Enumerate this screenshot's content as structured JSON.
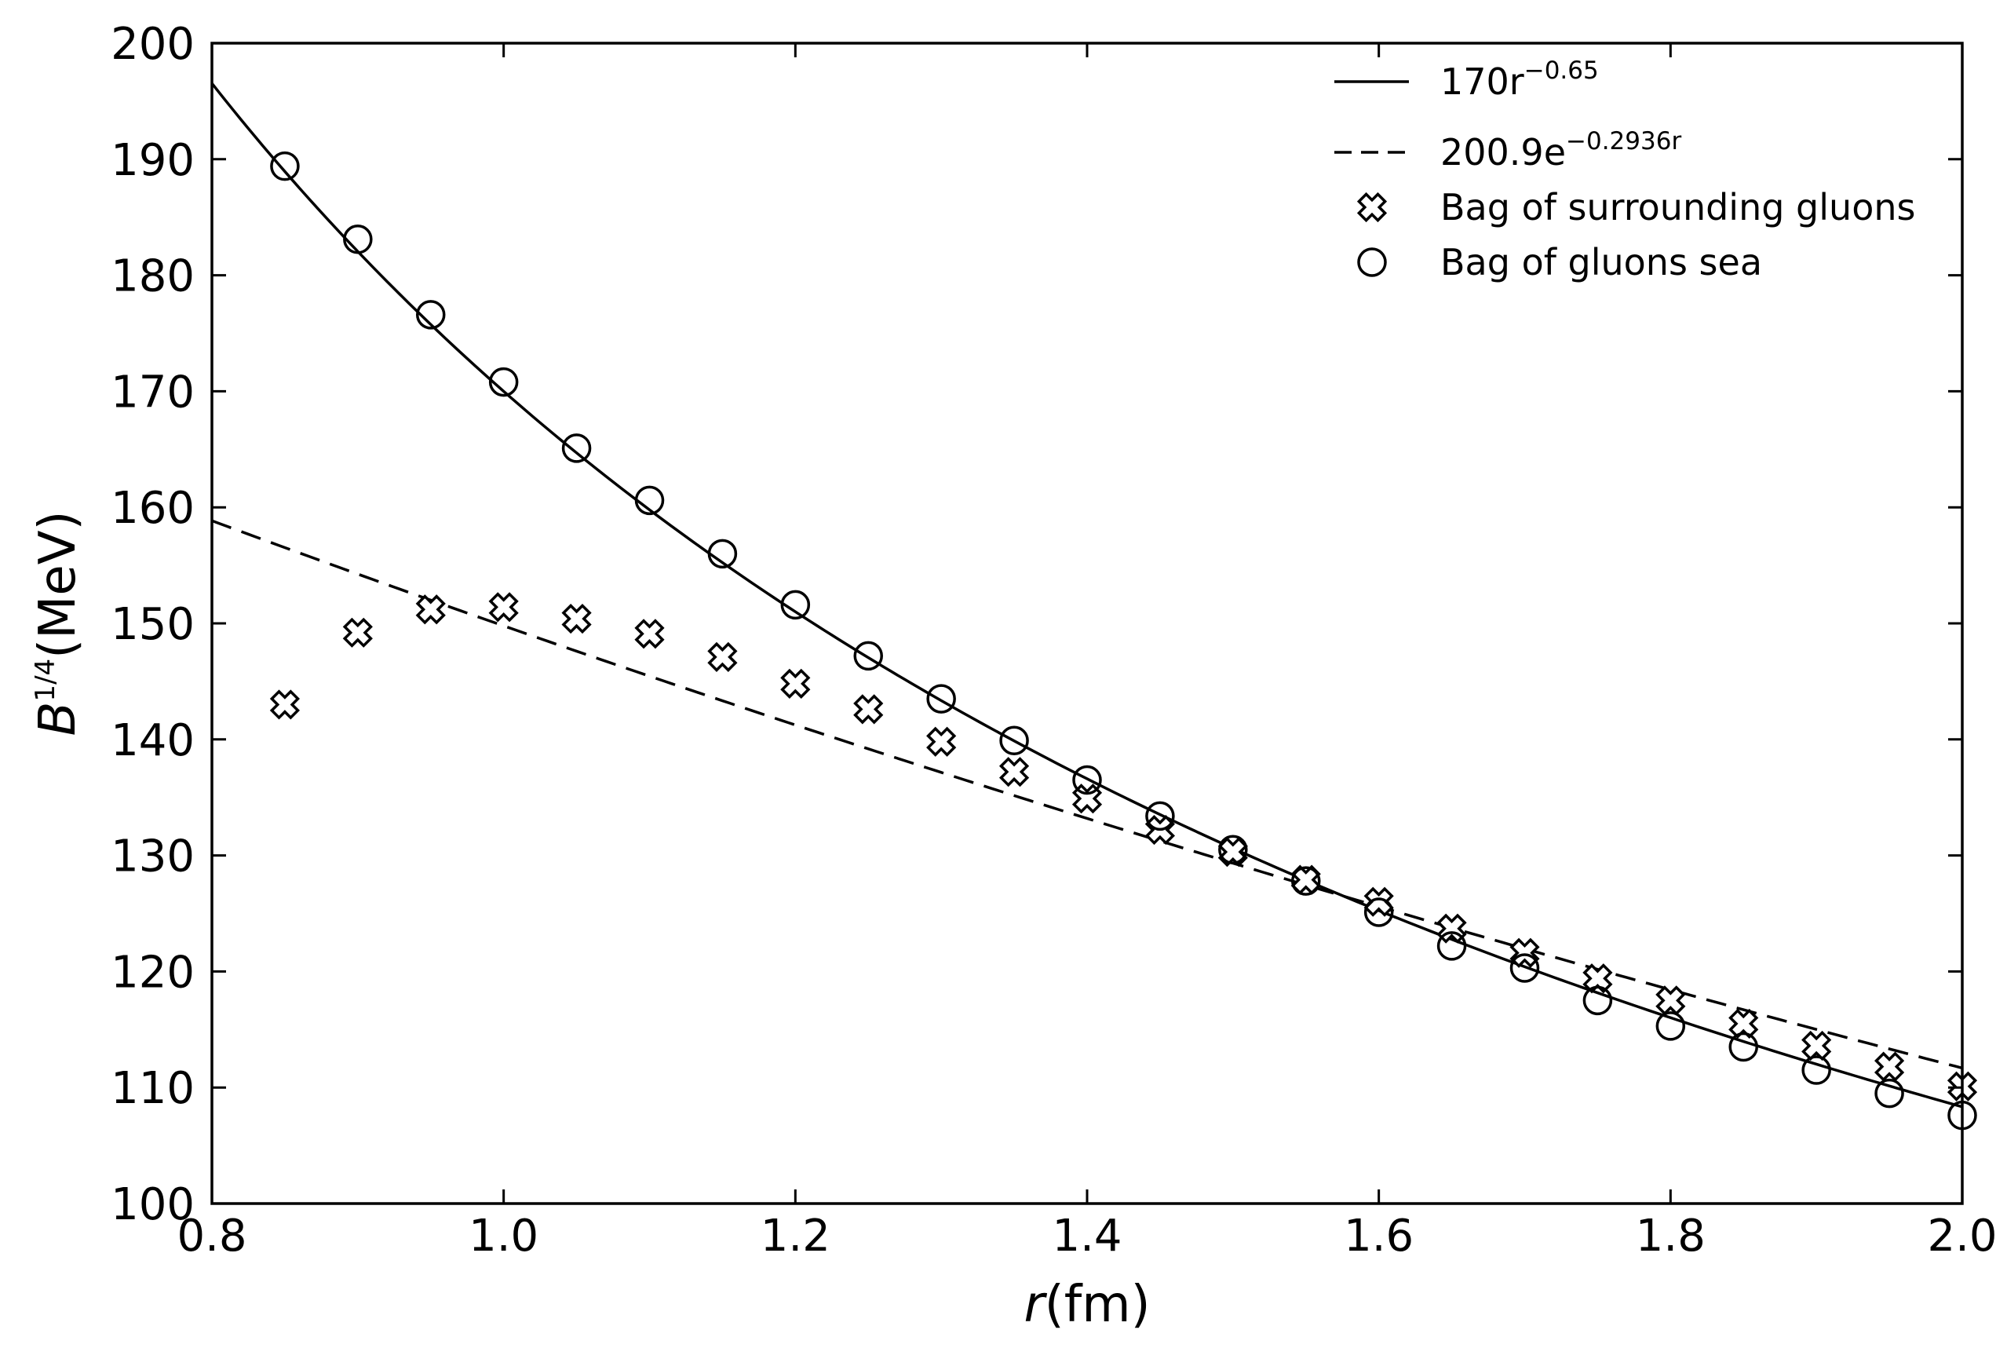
{
  "chart_data": {
    "type": "scatter",
    "xlabel": {
      "main": "r",
      "unit": "(fm)"
    },
    "ylabel": {
      "main": "B",
      "exponent": "1/4",
      "unit": "(MeV)"
    },
    "xlim": [
      0.8,
      2.0
    ],
    "ylim": [
      100,
      200
    ],
    "x_ticks": [
      0.8,
      1.0,
      1.2,
      1.4,
      1.6,
      1.8,
      2.0
    ],
    "x_tick_labels": [
      "0.8",
      "1.0",
      "1.2",
      "1.4",
      "1.6",
      "1.8",
      "2.0"
    ],
    "y_ticks": [
      100,
      110,
      120,
      130,
      140,
      150,
      160,
      170,
      180,
      190,
      200
    ],
    "y_tick_labels": [
      "100",
      "110",
      "120",
      "130",
      "140",
      "150",
      "160",
      "170",
      "180",
      "190",
      "200"
    ],
    "grid": false,
    "legend_position": "top-right",
    "curves": [
      {
        "legend": "170r",
        "legend_sup": "−0.65",
        "style": "solid",
        "a": 170,
        "b": -0.65,
        "form": "power"
      },
      {
        "legend": "200.9e",
        "legend_sup": "−0.2936r",
        "style": "dashed",
        "a": 200.9,
        "b": -0.2936,
        "form": "exp"
      }
    ],
    "series": [
      {
        "name": "Bag of surrounding gluons",
        "marker": "x",
        "x": [
          0.85,
          0.9,
          0.95,
          1.0,
          1.05,
          1.1,
          1.15,
          1.2,
          1.25,
          1.3,
          1.35,
          1.4,
          1.45,
          1.5,
          1.55,
          1.6,
          1.65,
          1.7,
          1.75,
          1.8,
          1.85,
          1.9,
          1.95,
          2.0
        ],
        "y": [
          143.0,
          149.2,
          151.2,
          151.4,
          150.4,
          149.1,
          147.1,
          144.8,
          142.6,
          139.8,
          137.2,
          134.9,
          132.2,
          130.3,
          127.9,
          126.0,
          123.7,
          121.6,
          119.4,
          117.5,
          115.5,
          113.6,
          111.8,
          110.1
        ]
      },
      {
        "name": "Bag of gluons sea",
        "marker": "circle",
        "x": [
          0.85,
          0.9,
          0.95,
          1.0,
          1.05,
          1.1,
          1.15,
          1.2,
          1.25,
          1.3,
          1.35,
          1.4,
          1.45,
          1.5,
          1.55,
          1.6,
          1.65,
          1.7,
          1.75,
          1.8,
          1.85,
          1.9,
          1.95,
          2.0
        ],
        "y": [
          189.4,
          183.1,
          176.6,
          170.8,
          165.1,
          160.6,
          156.0,
          151.6,
          147.2,
          143.5,
          139.9,
          136.5,
          133.4,
          130.5,
          127.8,
          125.1,
          122.2,
          120.3,
          117.5,
          115.3,
          113.5,
          111.5,
          109.5,
          107.6
        ]
      }
    ]
  }
}
